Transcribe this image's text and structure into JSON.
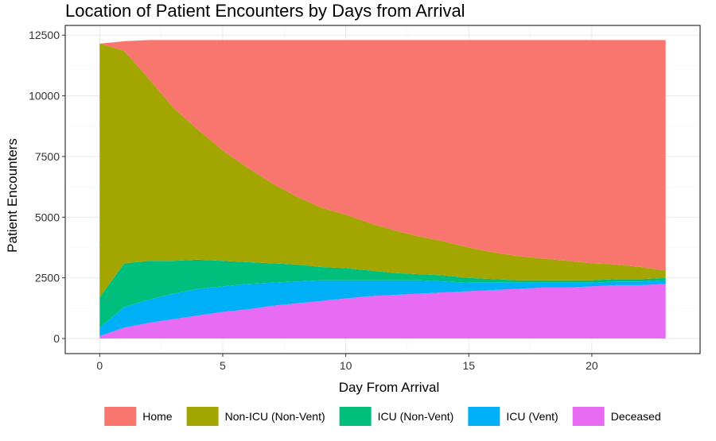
{
  "chart_data": {
    "type": "area",
    "stacked": true,
    "title": "Location of Patient Encounters by Days from Arrival",
    "xlabel": "Day From Arrival",
    "ylabel": "Patient Encounters",
    "xlim": [
      -1.4,
      24.4
    ],
    "ylim": [
      -620,
      12900
    ],
    "x_ticks": [
      0,
      5,
      10,
      15,
      20
    ],
    "y_ticks": [
      0,
      2500,
      5000,
      7500,
      10000,
      12500
    ],
    "grid": true,
    "legend_position": "bottom",
    "x": [
      0,
      1,
      2,
      3,
      4,
      5,
      6,
      7,
      8,
      9,
      10,
      11,
      12,
      13,
      14,
      15,
      16,
      17,
      18,
      19,
      20,
      21,
      22,
      23
    ],
    "series": [
      {
        "name": "Deceased",
        "color": "#E76BF3",
        "values": [
          100,
          450,
          650,
          800,
          950,
          1100,
          1200,
          1350,
          1450,
          1550,
          1650,
          1750,
          1800,
          1850,
          1900,
          1950,
          2000,
          2050,
          2100,
          2100,
          2150,
          2200,
          2200,
          2250
        ]
      },
      {
        "name": "ICU (Vent)",
        "color": "#00B0F6",
        "values": [
          350,
          850,
          950,
          1050,
          1100,
          1050,
          1050,
          950,
          900,
          850,
          750,
          650,
          600,
          550,
          450,
          350,
          300,
          250,
          200,
          200,
          150,
          150,
          150,
          150
        ]
      },
      {
        "name": "ICU (Non-Vent)",
        "color": "#00BF7D",
        "values": [
          1250,
          1800,
          1600,
          1350,
          1200,
          1050,
          900,
          800,
          700,
          550,
          500,
          400,
          300,
          250,
          250,
          200,
          150,
          100,
          100,
          100,
          100,
          100,
          100,
          100
        ]
      },
      {
        "name": "Non-ICU (Non-Vent)",
        "color": "#A3A500",
        "values": [
          10450,
          8750,
          7500,
          6300,
          5350,
          4550,
          3900,
          3300,
          2800,
          2450,
          2200,
          1950,
          1750,
          1550,
          1400,
          1250,
          1100,
          1000,
          900,
          800,
          700,
          600,
          500,
          300
        ]
      },
      {
        "name": "Home",
        "color": "#F8766D",
        "values": [
          0,
          400,
          1600,
          2800,
          3700,
          4550,
          5250,
          5900,
          6450,
          6900,
          7200,
          7550,
          7850,
          8100,
          8300,
          8550,
          8750,
          8900,
          9000,
          9100,
          9200,
          9250,
          9350,
          9500
        ]
      }
    ],
    "legend_order": [
      "Home",
      "Non-ICU (Non-Vent)",
      "ICU (Non-Vent)",
      "ICU (Vent)",
      "Deceased"
    ]
  }
}
